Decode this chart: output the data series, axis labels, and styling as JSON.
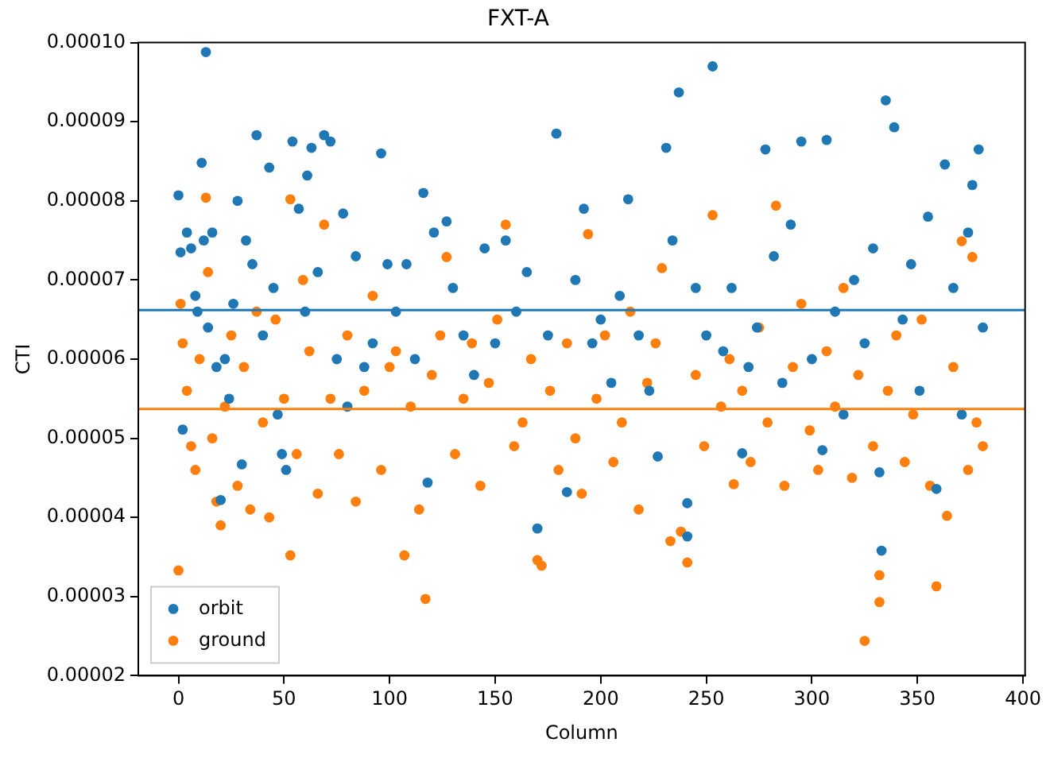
{
  "chart_data": {
    "type": "scatter",
    "title": "FXT-A",
    "xlabel": "Column",
    "ylabel": "CTI",
    "xlim": [
      -19,
      401
    ],
    "xticks": [
      0,
      50,
      100,
      150,
      200,
      250,
      300,
      350,
      400
    ],
    "ylim": [
      2e-05,
      0.0001
    ],
    "yticks": [
      {
        "value": 2e-05,
        "label": "0.00002"
      },
      {
        "value": 3e-05,
        "label": "0.00003"
      },
      {
        "value": 4e-05,
        "label": "0.00004"
      },
      {
        "value": 5e-05,
        "label": "0.00005"
      },
      {
        "value": 6e-05,
        "label": "0.00006"
      },
      {
        "value": 7e-05,
        "label": "0.00007"
      },
      {
        "value": 8e-05,
        "label": "0.00008"
      },
      {
        "value": 9e-05,
        "label": "0.00009"
      },
      {
        "value": 0.0001,
        "label": "0.00010"
      }
    ],
    "grid": false,
    "legend": "bottom left",
    "marker": "circle",
    "series": [
      {
        "name": "orbit",
        "color": "#1f77b4",
        "x": [
          0,
          1,
          2,
          4,
          6,
          8,
          9,
          11,
          12,
          13,
          14,
          16,
          18,
          20,
          22,
          24,
          26,
          28,
          30,
          32,
          35,
          37,
          40,
          43,
          45,
          47,
          49,
          51,
          54,
          57,
          60,
          61,
          63,
          66,
          69,
          72,
          75,
          78,
          80,
          84,
          88,
          92,
          96,
          99,
          103,
          108,
          112,
          116,
          118,
          121,
          127,
          130,
          135,
          140,
          145,
          150,
          155,
          160,
          165,
          170,
          175,
          179,
          184,
          188,
          192,
          196,
          200,
          205,
          209,
          213,
          218,
          223,
          227,
          231,
          234,
          237,
          241,
          241,
          245,
          250,
          253,
          258,
          262,
          267,
          270,
          274,
          278,
          282,
          286,
          290,
          295,
          300,
          305,
          307,
          311,
          315,
          320,
          325,
          329,
          332,
          333,
          335,
          339,
          343,
          347,
          351,
          355,
          359,
          363,
          367,
          371,
          374,
          376,
          379,
          381
        ],
        "values": [
          8.07e-05,
          7.35e-05,
          5.11e-05,
          7.6e-05,
          7.4e-05,
          6.8e-05,
          6.6e-05,
          8.48e-05,
          7.5e-05,
          9.88e-05,
          6.4e-05,
          7.6e-05,
          5.9e-05,
          4.22e-05,
          6e-05,
          5.5e-05,
          6.7e-05,
          8e-05,
          4.67e-05,
          7.5e-05,
          7.2e-05,
          8.83e-05,
          6.3e-05,
          8.42e-05,
          6.9e-05,
          5.3e-05,
          4.8e-05,
          4.6e-05,
          8.75e-05,
          7.9e-05,
          6.6e-05,
          8.32e-05,
          8.67e-05,
          7.1e-05,
          8.83e-05,
          8.75e-05,
          6e-05,
          7.84e-05,
          5.4e-05,
          7.3e-05,
          5.9e-05,
          6.2e-05,
          8.6e-05,
          7.2e-05,
          6.6e-05,
          7.2e-05,
          6e-05,
          8.1e-05,
          4.44e-05,
          7.6e-05,
          7.74e-05,
          6.9e-05,
          6.3e-05,
          5.8e-05,
          7.4e-05,
          6.2e-05,
          7.5e-05,
          6.6e-05,
          7.1e-05,
          3.86e-05,
          6.3e-05,
          8.85e-05,
          4.32e-05,
          7e-05,
          7.9e-05,
          6.2e-05,
          6.5e-05,
          5.7e-05,
          6.8e-05,
          8.02e-05,
          6.3e-05,
          5.6e-05,
          4.77e-05,
          8.67e-05,
          7.5e-05,
          9.37e-05,
          3.76e-05,
          4.18e-05,
          6.9e-05,
          6.3e-05,
          9.7e-05,
          6.1e-05,
          6.9e-05,
          4.81e-05,
          5.9e-05,
          6.4e-05,
          8.65e-05,
          7.3e-05,
          5.7e-05,
          7.7e-05,
          8.75e-05,
          6e-05,
          4.85e-05,
          8.77e-05,
          6.6e-05,
          5.3e-05,
          7e-05,
          6.2e-05,
          7.4e-05,
          4.57e-05,
          3.58e-05,
          9.27e-05,
          8.93e-05,
          6.5e-05,
          7.2e-05,
          5.6e-05,
          7.8e-05,
          4.36e-05,
          8.46e-05,
          6.9e-05,
          5.3e-05,
          7.6e-05,
          8.2e-05,
          8.65e-05,
          6.4e-05
        ]
      },
      {
        "name": "ground",
        "color": "#ff7f0e",
        "x": [
          0,
          1,
          2,
          4,
          6,
          8,
          10,
          13,
          14,
          16,
          18,
          20,
          22,
          25,
          28,
          31,
          34,
          37,
          40,
          43,
          46,
          50,
          53,
          53,
          56,
          59,
          62,
          66,
          69,
          72,
          76,
          80,
          84,
          88,
          92,
          96,
          100,
          103,
          107,
          110,
          114,
          117,
          120,
          124,
          127,
          131,
          135,
          139,
          143,
          147,
          151,
          155,
          159,
          163,
          167,
          170,
          172,
          176,
          180,
          184,
          188,
          191,
          194,
          198,
          202,
          206,
          210,
          214,
          218,
          222,
          226,
          229,
          233,
          238,
          241,
          245,
          249,
          253,
          257,
          261,
          263,
          267,
          271,
          275,
          279,
          283,
          287,
          291,
          295,
          299,
          303,
          307,
          311,
          315,
          319,
          322,
          325,
          329,
          332,
          332,
          336,
          340,
          344,
          348,
          352,
          356,
          359,
          364,
          367,
          371,
          374,
          376,
          378,
          381
        ],
        "values": [
          3.33e-05,
          6.7e-05,
          6.2e-05,
          5.6e-05,
          4.9e-05,
          4.6e-05,
          6e-05,
          8.04e-05,
          7.1e-05,
          5e-05,
          4.2e-05,
          3.9e-05,
          5.4e-05,
          6.3e-05,
          4.4e-05,
          5.9e-05,
          4.1e-05,
          6.6e-05,
          5.2e-05,
          4e-05,
          6.5e-05,
          5.5e-05,
          8.02e-05,
          3.52e-05,
          4.8e-05,
          7e-05,
          6.1e-05,
          4.3e-05,
          7.7e-05,
          5.5e-05,
          4.8e-05,
          6.3e-05,
          4.2e-05,
          5.6e-05,
          6.8e-05,
          4.6e-05,
          5.9e-05,
          6.1e-05,
          3.52e-05,
          5.4e-05,
          4.1e-05,
          2.97e-05,
          5.8e-05,
          6.3e-05,
          7.29e-05,
          4.8e-05,
          5.5e-05,
          6.2e-05,
          4.4e-05,
          5.7e-05,
          6.5e-05,
          7.7e-05,
          4.9e-05,
          5.2e-05,
          6e-05,
          3.46e-05,
          3.39e-05,
          5.6e-05,
          4.6e-05,
          6.2e-05,
          5e-05,
          4.3e-05,
          7.58e-05,
          5.5e-05,
          6.3e-05,
          4.7e-05,
          5.2e-05,
          6.6e-05,
          4.1e-05,
          5.7e-05,
          6.2e-05,
          7.15e-05,
          3.7e-05,
          3.82e-05,
          3.43e-05,
          5.8e-05,
          4.9e-05,
          7.82e-05,
          5.4e-05,
          6e-05,
          4.42e-05,
          5.6e-05,
          4.7e-05,
          6.4e-05,
          5.2e-05,
          7.94e-05,
          4.4e-05,
          5.9e-05,
          6.7e-05,
          5.1e-05,
          4.6e-05,
          6.1e-05,
          5.4e-05,
          6.9e-05,
          4.5e-05,
          5.8e-05,
          2.44e-05,
          4.9e-05,
          2.93e-05,
          3.27e-05,
          5.6e-05,
          6.3e-05,
          4.7e-05,
          5.3e-05,
          6.5e-05,
          4.4e-05,
          3.13e-05,
          4.02e-05,
          5.9e-05,
          7.49e-05,
          4.6e-05,
          7.29e-05,
          5.2e-05,
          4.9e-05
        ]
      }
    ],
    "ref_lines": [
      {
        "axis": "y",
        "value": 6.62e-05,
        "color": "#1f77b4"
      },
      {
        "axis": "y",
        "value": 5.37e-05,
        "color": "#ff7f0e"
      }
    ]
  }
}
